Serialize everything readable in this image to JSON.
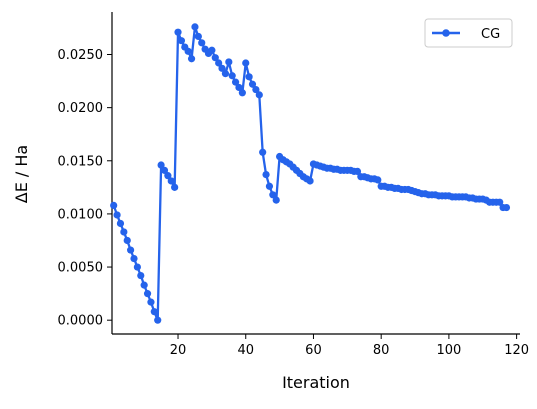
{
  "chart_data": {
    "type": "line",
    "title": "",
    "xlabel": "Iteration",
    "ylabel": "ΔE / Ha",
    "xlim": [
      0.5,
      121
    ],
    "ylim": [
      -0.0013,
      0.029
    ],
    "xticks": [
      20,
      40,
      60,
      80,
      100,
      120
    ],
    "yticks": [
      0.0,
      0.005,
      0.01,
      0.015,
      0.02,
      0.025
    ],
    "ytick_labels": [
      "0.0000",
      "0.0050",
      "0.0100",
      "0.0150",
      "0.0200",
      "0.0250"
    ],
    "grid": false,
    "legend": {
      "position": "top-right"
    },
    "series": [
      {
        "name": "CG",
        "color": "#2563eb",
        "marker": "circle",
        "x": [
          1,
          2,
          3,
          4,
          5,
          6,
          7,
          8,
          9,
          10,
          11,
          12,
          13,
          14,
          15,
          16,
          17,
          18,
          19,
          20,
          21,
          22,
          23,
          24,
          25,
          26,
          27,
          28,
          29,
          30,
          31,
          32,
          33,
          34,
          35,
          36,
          37,
          38,
          39,
          40,
          41,
          42,
          43,
          44,
          45,
          46,
          47,
          48,
          49,
          50,
          51,
          52,
          53,
          54,
          55,
          56,
          57,
          58,
          59,
          60,
          61,
          62,
          63,
          64,
          65,
          66,
          67,
          68,
          69,
          70,
          71,
          72,
          73,
          74,
          75,
          76,
          77,
          78,
          79,
          80,
          81,
          82,
          83,
          84,
          85,
          86,
          87,
          88,
          89,
          90,
          91,
          92,
          93,
          94,
          95,
          96,
          97,
          98,
          99,
          100,
          101,
          102,
          103,
          104,
          105,
          106,
          107,
          108,
          109,
          110,
          111,
          112,
          113,
          114,
          115,
          116,
          117
        ],
        "y": [
          0.0108,
          0.0099,
          0.0091,
          0.0083,
          0.0075,
          0.0066,
          0.0058,
          0.005,
          0.0042,
          0.0033,
          0.0025,
          0.0017,
          0.0008,
          0.0,
          0.0146,
          0.0141,
          0.0136,
          0.0131,
          0.0125,
          0.0271,
          0.0263,
          0.0257,
          0.0253,
          0.0246,
          0.0276,
          0.0267,
          0.0261,
          0.0255,
          0.0251,
          0.0254,
          0.0247,
          0.0242,
          0.0237,
          0.0232,
          0.0243,
          0.023,
          0.0224,
          0.0219,
          0.0214,
          0.0242,
          0.0229,
          0.0222,
          0.0217,
          0.0212,
          0.0158,
          0.0137,
          0.0126,
          0.0118,
          0.0113,
          0.0154,
          0.0151,
          0.0149,
          0.0147,
          0.0144,
          0.0141,
          0.0138,
          0.0135,
          0.0133,
          0.0131,
          0.0147,
          0.0146,
          0.0145,
          0.0144,
          0.0143,
          0.0143,
          0.0142,
          0.0142,
          0.0141,
          0.0141,
          0.0141,
          0.0141,
          0.014,
          0.014,
          0.0135,
          0.0135,
          0.0134,
          0.0133,
          0.0133,
          0.0132,
          0.0126,
          0.0126,
          0.0125,
          0.0125,
          0.0124,
          0.0124,
          0.0123,
          0.0123,
          0.0123,
          0.0122,
          0.0121,
          0.012,
          0.0119,
          0.0119,
          0.0118,
          0.0118,
          0.0118,
          0.0117,
          0.0117,
          0.0117,
          0.0117,
          0.0116,
          0.0116,
          0.0116,
          0.0116,
          0.0116,
          0.0115,
          0.0115,
          0.0114,
          0.0114,
          0.0114,
          0.0113,
          0.0111,
          0.0111,
          0.0111,
          0.0111,
          0.0106,
          0.0106
        ]
      }
    ]
  }
}
